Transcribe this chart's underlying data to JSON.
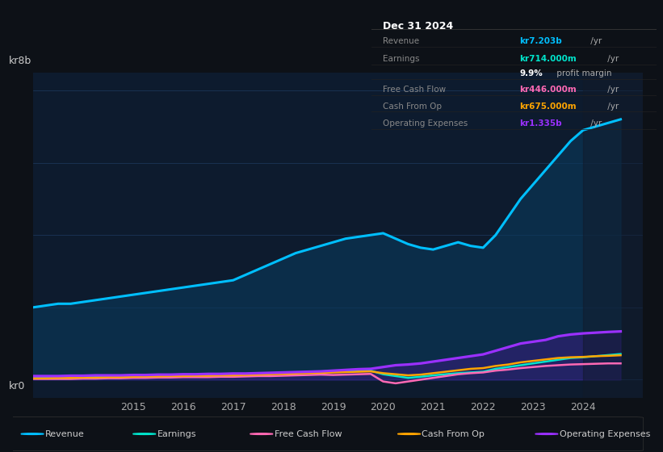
{
  "bg_color": "#0d1117",
  "plot_bg_color": "#0d1b2e",
  "grid_color": "#1e3a5f",
  "title_box": {
    "title": "Dec 31 2024",
    "rows": [
      {
        "label": "Revenue",
        "value": "kr7.203b",
        "unit": "/yr",
        "color": "#00bfff"
      },
      {
        "label": "Earnings",
        "value": "kr714.000m",
        "unit": "/yr",
        "color": "#00e5cc"
      },
      {
        "label": "",
        "value": "9.9%",
        "unit": " profit margin",
        "color": "#ffffff"
      },
      {
        "label": "Free Cash Flow",
        "value": "kr446.000m",
        "unit": "/yr",
        "color": "#ff69b4"
      },
      {
        "label": "Cash From Op",
        "value": "kr675.000m",
        "unit": "/yr",
        "color": "#ffa500"
      },
      {
        "label": "Operating Expenses",
        "value": "kr1.335b",
        "unit": "/yr",
        "color": "#9b30ff"
      }
    ]
  },
  "ylabel_top": "kr8b",
  "ylabel_bottom": "kr0",
  "years": [
    2013.0,
    2013.25,
    2013.5,
    2013.75,
    2014.0,
    2014.25,
    2014.5,
    2014.75,
    2015.0,
    2015.25,
    2015.5,
    2015.75,
    2016.0,
    2016.25,
    2016.5,
    2016.75,
    2017.0,
    2017.25,
    2017.5,
    2017.75,
    2018.0,
    2018.25,
    2018.5,
    2018.75,
    2019.0,
    2019.25,
    2019.5,
    2019.75,
    2020.0,
    2020.25,
    2020.5,
    2020.75,
    2021.0,
    2021.25,
    2021.5,
    2021.75,
    2022.0,
    2022.25,
    2022.5,
    2022.75,
    2023.0,
    2023.25,
    2023.5,
    2023.75,
    2024.0,
    2024.25,
    2024.5,
    2024.75
  ],
  "revenue": [
    2.0,
    2.05,
    2.1,
    2.1,
    2.15,
    2.2,
    2.25,
    2.3,
    2.35,
    2.4,
    2.45,
    2.5,
    2.55,
    2.6,
    2.65,
    2.7,
    2.75,
    2.9,
    3.05,
    3.2,
    3.35,
    3.5,
    3.6,
    3.7,
    3.8,
    3.9,
    3.95,
    4.0,
    4.05,
    3.9,
    3.75,
    3.65,
    3.6,
    3.7,
    3.8,
    3.7,
    3.65,
    4.0,
    4.5,
    5.0,
    5.4,
    5.8,
    6.2,
    6.6,
    6.9,
    7.0,
    7.1,
    7.2
  ],
  "earnings": [
    0.05,
    0.06,
    0.07,
    0.07,
    0.08,
    0.09,
    0.1,
    0.1,
    0.11,
    0.12,
    0.12,
    0.13,
    0.13,
    0.14,
    0.14,
    0.15,
    0.15,
    0.16,
    0.17,
    0.18,
    0.19,
    0.2,
    0.21,
    0.22,
    0.22,
    0.23,
    0.24,
    0.25,
    0.15,
    0.1,
    0.05,
    0.08,
    0.12,
    0.15,
    0.18,
    0.2,
    0.22,
    0.3,
    0.35,
    0.4,
    0.45,
    0.5,
    0.55,
    0.6,
    0.62,
    0.65,
    0.68,
    0.71
  ],
  "free_cash_flow": [
    0.02,
    0.02,
    0.02,
    0.02,
    0.03,
    0.03,
    0.04,
    0.04,
    0.05,
    0.05,
    0.06,
    0.06,
    0.07,
    0.07,
    0.07,
    0.08,
    0.08,
    0.09,
    0.1,
    0.1,
    0.11,
    0.12,
    0.13,
    0.14,
    0.13,
    0.14,
    0.15,
    0.16,
    -0.05,
    -0.1,
    -0.05,
    0.0,
    0.05,
    0.1,
    0.15,
    0.18,
    0.2,
    0.25,
    0.28,
    0.32,
    0.35,
    0.38,
    0.4,
    0.42,
    0.43,
    0.44,
    0.45,
    0.45
  ],
  "cash_from_op": [
    0.04,
    0.04,
    0.05,
    0.05,
    0.06,
    0.06,
    0.07,
    0.07,
    0.08,
    0.09,
    0.09,
    0.1,
    0.1,
    0.11,
    0.11,
    0.12,
    0.12,
    0.13,
    0.14,
    0.15,
    0.16,
    0.17,
    0.18,
    0.19,
    0.2,
    0.21,
    0.22,
    0.23,
    0.18,
    0.15,
    0.12,
    0.14,
    0.18,
    0.22,
    0.26,
    0.3,
    0.32,
    0.38,
    0.42,
    0.48,
    0.52,
    0.56,
    0.6,
    0.62,
    0.63,
    0.65,
    0.66,
    0.675
  ],
  "operating_expenses": [
    0.1,
    0.1,
    0.1,
    0.11,
    0.11,
    0.12,
    0.12,
    0.12,
    0.13,
    0.13,
    0.14,
    0.14,
    0.15,
    0.15,
    0.16,
    0.16,
    0.17,
    0.17,
    0.18,
    0.19,
    0.2,
    0.21,
    0.22,
    0.23,
    0.25,
    0.27,
    0.29,
    0.3,
    0.35,
    0.4,
    0.42,
    0.45,
    0.5,
    0.55,
    0.6,
    0.65,
    0.7,
    0.8,
    0.9,
    1.0,
    1.05,
    1.1,
    1.2,
    1.25,
    1.28,
    1.3,
    1.32,
    1.335
  ],
  "revenue_color": "#00bfff",
  "earnings_color": "#00e5cc",
  "fcf_color": "#ff69b4",
  "cashop_color": "#ffa500",
  "opex_color": "#9b30ff",
  "revenue_fill": "#0a3a5c",
  "highlight_color": "#1a2a4a",
  "xtick_labels": [
    "2015",
    "2016",
    "2017",
    "2018",
    "2019",
    "2020",
    "2021",
    "2022",
    "2023",
    "2024"
  ],
  "xtick_positions": [
    2015,
    2016,
    2017,
    2018,
    2019,
    2020,
    2021,
    2022,
    2023,
    2024
  ],
  "ylim": [
    -0.5,
    8.5
  ],
  "xlim": [
    2013.0,
    2025.2
  ]
}
